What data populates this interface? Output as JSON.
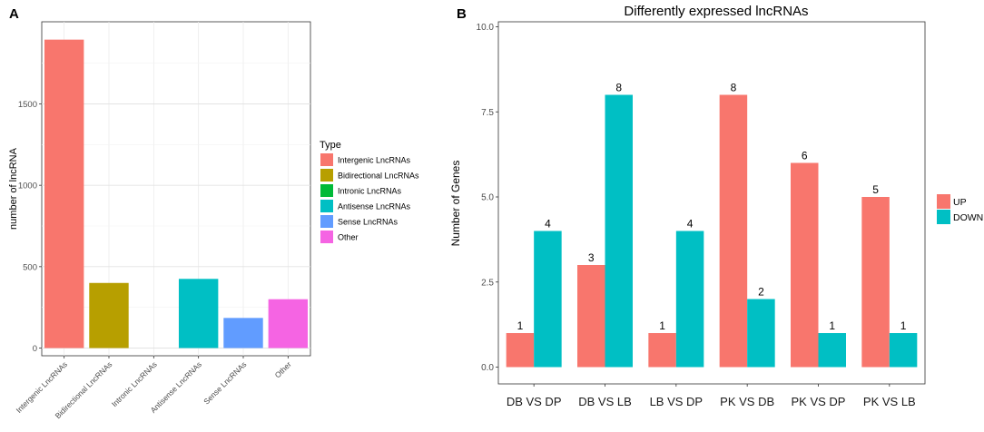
{
  "panel_labels": {
    "a": "A",
    "b": "B"
  },
  "chart_data": [
    {
      "type": "bar",
      "title": "",
      "xlabel": "",
      "ylabel": "number of lncRNA",
      "categories": [
        "Intergenic LncRNAs",
        "Bidirectional LncRNAs",
        "Intronic LncRNAs",
        "Antisense LncRNAs",
        "Sense LncRNAs",
        "Other"
      ],
      "values": [
        1895,
        400,
        0,
        425,
        185,
        300
      ],
      "colors": [
        "#F8766D",
        "#B79F00",
        "#00BA38",
        "#00BFC4",
        "#619CFF",
        "#F564E3"
      ],
      "ylim": [
        0,
        1985
      ],
      "yticks": [
        0,
        500,
        1000,
        1500
      ],
      "legend": {
        "title": "Type",
        "placement": "right",
        "entries": [
          "Intergenic LncRNAs",
          "Bidirectional LncRNAs",
          "Intronic LncRNAs",
          "Antisense LncRNAs",
          "Sense LncRNAs",
          "Other"
        ]
      },
      "grid": true
    },
    {
      "type": "bar",
      "title": "Differently expressed lncRNAs",
      "xlabel": "",
      "ylabel": "Number of Genes",
      "categories": [
        "DB VS DP",
        "DB VS LB",
        "LB VS DP",
        "PK VS DB",
        "PK VS DP",
        "PK VS LB"
      ],
      "series": [
        {
          "name": "UP",
          "color": "#F8766D",
          "values": [
            1,
            3,
            1,
            8,
            6,
            5
          ]
        },
        {
          "name": "DOWN",
          "color": "#00BFC4",
          "values": [
            4,
            8,
            4,
            2,
            1,
            1
          ]
        }
      ],
      "ylim": [
        -0.4,
        10.0
      ],
      "yticks": [
        "0.0",
        "2.5",
        "5.0",
        "7.5",
        "10.0"
      ],
      "legend": {
        "placement": "right",
        "entries": [
          "UP",
          "DOWN"
        ]
      },
      "grid": false
    }
  ]
}
